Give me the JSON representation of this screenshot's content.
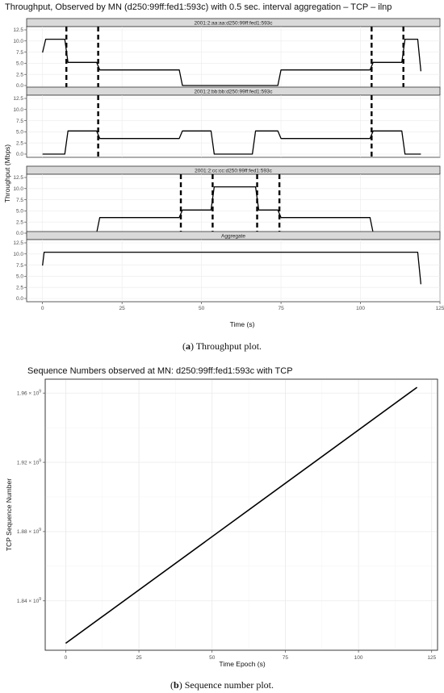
{
  "figure": {
    "caption_a": {
      "label": "a",
      "text": " Throughput plot."
    },
    "caption_b": {
      "label": "b",
      "text": " Sequence number plot."
    }
  },
  "chart_data": [
    {
      "type": "line",
      "title": "Throughput, Observed by MN (d250:99ff:fed1:593c) with 0.5 sec. interval aggregation – TCP – ilnp",
      "xlabel": "Time (s)",
      "ylabel": "Throughput (Mbps)",
      "xlim": [
        -5,
        125
      ],
      "ylim": [
        0,
        12.5
      ],
      "xticks": [
        0,
        25,
        50,
        75,
        100,
        125
      ],
      "yticks": [
        0,
        2.5,
        5,
        7.5,
        10,
        12.5
      ],
      "ytick_labels": [
        "0.0",
        "2.5",
        "5.0",
        "7.5",
        "10.0",
        "12.5"
      ],
      "grid": true,
      "line_color": "#000000",
      "handover_style": "dashed vertical lines",
      "panels": [
        {
          "strip": "2001:2:aa:aa:d250:99ff:fed1:593c",
          "x": [
            0,
            1,
            7,
            8,
            17,
            18,
            43,
            44,
            74,
            75,
            103,
            104,
            113,
            114,
            118,
            119
          ],
          "y": [
            7.4,
            10.4,
            10.4,
            5.2,
            5.2,
            3.5,
            3.5,
            0,
            0,
            3.5,
            3.5,
            5.2,
            5.2,
            10.4,
            10.4,
            3.2
          ],
          "handovers": [
            7.5,
            17.5,
            103.5,
            113.5
          ]
        },
        {
          "strip": "2001:2:bb:bb:d250:99ff:fed1:593c",
          "x": [
            0,
            7,
            8,
            17,
            18,
            43,
            44,
            53,
            54,
            66,
            67,
            74,
            75,
            103,
            104,
            113,
            114,
            119
          ],
          "y": [
            0,
            0,
            5.2,
            5.2,
            3.5,
            3.5,
            5.2,
            5.2,
            0,
            0,
            5.2,
            5.2,
            3.5,
            3.5,
            5.2,
            5.2,
            0,
            0
          ],
          "handovers": [
            17.5,
            103.5
          ]
        },
        {
          "strip": "2001:2:cc:cc:d250:99ff:fed1:593c",
          "x": [
            0,
            17,
            18,
            43,
            44,
            53,
            54,
            67,
            68,
            74,
            75,
            103,
            104,
            119
          ],
          "y": [
            0,
            0,
            3.5,
            3.5,
            5.2,
            5.2,
            10.4,
            10.4,
            5.2,
            5.2,
            3.5,
            3.5,
            0,
            0
          ],
          "handovers": [
            43.5,
            53.5,
            67.5,
            74.5
          ]
        },
        {
          "strip": "Aggregate",
          "x": [
            0,
            0.5,
            118,
            119
          ],
          "y": [
            7.4,
            10.4,
            10.4,
            3.2
          ],
          "handovers": []
        }
      ]
    },
    {
      "type": "line",
      "title": "Sequence Numbers observed at MN: d250:99ff:fed1:593c with TCP",
      "xlabel": "Time Epoch (s)",
      "ylabel": "TCP Sequence Number",
      "xlim": [
        -7,
        127
      ],
      "ylim": [
        1811500000.0,
        1968000000.0
      ],
      "xticks": [
        0,
        25,
        50,
        75,
        100,
        125
      ],
      "yticks": [
        1840000000.0,
        1880000000.0,
        1920000000.0,
        1960000000.0
      ],
      "ytick_labels": [
        {
          "mant": "1.84",
          "exp": "9"
        },
        {
          "mant": "1.88",
          "exp": "9"
        },
        {
          "mant": "1.92",
          "exp": "9"
        },
        {
          "mant": "1.96",
          "exp": "9"
        }
      ],
      "grid": true,
      "line_color": "#000000",
      "x": [
        0,
        120
      ],
      "y": [
        1815500000.0,
        1963300000.0
      ]
    }
  ]
}
